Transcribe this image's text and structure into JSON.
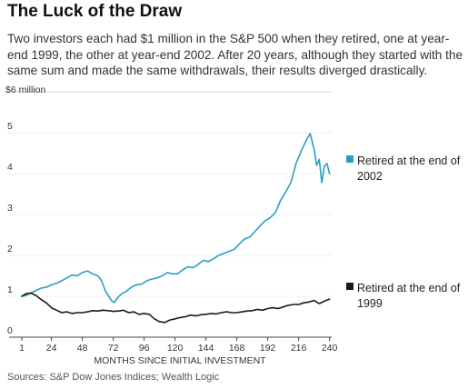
{
  "title": "The Luck of the Draw",
  "subtitle": "Two investors each had $1 million in the S&P 500 when they retired, one at year-end 1999, the other at year-end 2002. After 20 years, although they started with the same sum and made the same withdrawals, their results diverged drastically.",
  "source": "Sources: S&P Dow Jones Indices; Wealth Logic",
  "colors": {
    "retired_2002": "#2a9fc5",
    "retired_1999": "#1a1a1a"
  },
  "chart_data": {
    "type": "line",
    "xlabel": "MONTHS SINCE INITIAL INVESTMENT",
    "ylabel": "$6 million",
    "x_ticks": [
      1,
      24,
      48,
      72,
      96,
      120,
      144,
      168,
      192,
      216,
      240
    ],
    "y_ticks": [
      0,
      1,
      2,
      3,
      4,
      5
    ],
    "y_tick_labels": [
      "0",
      "1",
      "2",
      "3",
      "4",
      "5"
    ],
    "xlim": [
      1,
      241
    ],
    "ylim": [
      0,
      6
    ],
    "grid": true,
    "legend": "right",
    "series": [
      {
        "name": "Retired at the end of 2002",
        "color": "#2a9fc5",
        "x": [
          1,
          4,
          8,
          12,
          16,
          20,
          24,
          28,
          32,
          36,
          40,
          44,
          48,
          52,
          56,
          60,
          63,
          66,
          69,
          71,
          73,
          75,
          78,
          82,
          86,
          90,
          94,
          98,
          102,
          106,
          110,
          114,
          118,
          122,
          126,
          130,
          134,
          138,
          142,
          146,
          150,
          154,
          158,
          162,
          166,
          170,
          174,
          178,
          182,
          186,
          190,
          194,
          198,
          202,
          206,
          210,
          214,
          218,
          222,
          225,
          228,
          230,
          232,
          234,
          236,
          238,
          240
        ],
        "values": [
          1.0,
          1.02,
          1.08,
          1.14,
          1.2,
          1.22,
          1.28,
          1.32,
          1.38,
          1.45,
          1.52,
          1.5,
          1.58,
          1.62,
          1.55,
          1.5,
          1.38,
          1.12,
          0.98,
          0.88,
          0.85,
          0.95,
          1.05,
          1.12,
          1.22,
          1.28,
          1.3,
          1.38,
          1.42,
          1.45,
          1.5,
          1.58,
          1.55,
          1.55,
          1.65,
          1.72,
          1.7,
          1.78,
          1.88,
          1.85,
          1.92,
          2.0,
          2.05,
          2.1,
          2.15,
          2.28,
          2.4,
          2.45,
          2.58,
          2.72,
          2.85,
          2.92,
          3.05,
          3.35,
          3.55,
          3.78,
          4.25,
          4.55,
          4.82,
          4.98,
          4.6,
          4.2,
          4.35,
          3.78,
          4.18,
          4.25,
          4.0
        ]
      },
      {
        "name": "Retired at the end of 1999",
        "color": "#1a1a1a",
        "x": [
          1,
          4,
          8,
          12,
          16,
          20,
          24,
          28,
          32,
          36,
          40,
          44,
          48,
          52,
          56,
          60,
          64,
          68,
          72,
          76,
          80,
          84,
          88,
          92,
          96,
          100,
          104,
          108,
          112,
          116,
          120,
          124,
          128,
          132,
          136,
          140,
          144,
          148,
          152,
          156,
          160,
          164,
          168,
          172,
          176,
          180,
          184,
          188,
          192,
          196,
          200,
          204,
          208,
          212,
          216,
          220,
          224,
          228,
          232,
          236,
          240
        ],
        "values": [
          1.0,
          1.06,
          1.08,
          1.02,
          0.92,
          0.84,
          0.72,
          0.66,
          0.6,
          0.62,
          0.58,
          0.6,
          0.6,
          0.62,
          0.65,
          0.64,
          0.66,
          0.65,
          0.63,
          0.64,
          0.66,
          0.6,
          0.62,
          0.56,
          0.58,
          0.56,
          0.45,
          0.38,
          0.36,
          0.42,
          0.45,
          0.48,
          0.5,
          0.54,
          0.52,
          0.55,
          0.56,
          0.58,
          0.57,
          0.6,
          0.62,
          0.6,
          0.6,
          0.62,
          0.64,
          0.65,
          0.68,
          0.66,
          0.7,
          0.72,
          0.7,
          0.74,
          0.78,
          0.8,
          0.8,
          0.84,
          0.86,
          0.9,
          0.82,
          0.88,
          0.93
        ]
      }
    ]
  }
}
